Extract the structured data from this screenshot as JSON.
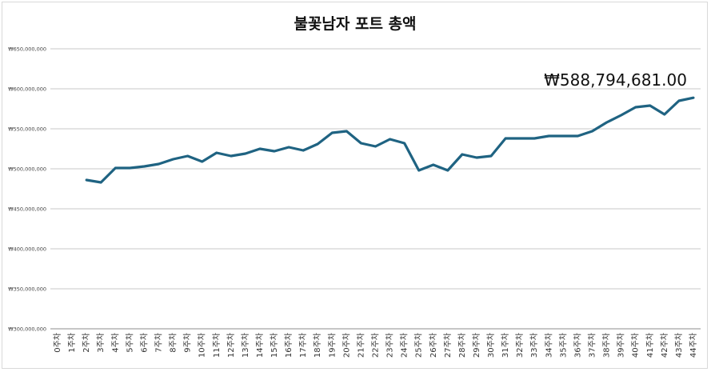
{
  "chart_data": {
    "type": "line",
    "title": "불꽃남자 포트 총액",
    "xlabel": "",
    "ylabel": "",
    "ylim": [
      300000000,
      650000000
    ],
    "yticks": [
      300000000,
      350000000,
      400000000,
      450000000,
      500000000,
      550000000,
      600000000,
      650000000
    ],
    "ytick_labels": [
      "₩300,000,000",
      "₩350,000,000",
      "₩400,000,000",
      "₩450,000,000",
      "₩500,000,000",
      "₩550,000,000",
      "₩600,000,000",
      "₩650,000,000"
    ],
    "grid": true,
    "legend": "none",
    "categories": [
      "0주차",
      "1주차",
      "2주차",
      "3주차",
      "4주차",
      "5주차",
      "6주차",
      "7주차",
      "8주차",
      "9주차",
      "10주차",
      "11주차",
      "12주차",
      "13주차",
      "14주차",
      "15주차",
      "16주차",
      "17주차",
      "18주차",
      "19주차",
      "20주차",
      "21주차",
      "22주차",
      "23주차",
      "24주차",
      "25주차",
      "26주차",
      "27주차",
      "28주차",
      "29주차",
      "30주차",
      "31주차",
      "32주차",
      "33주차",
      "34주차",
      "35주차",
      "36주차",
      "37주차",
      "38주차",
      "39주차",
      "40주차",
      "41주차",
      "42주차",
      "43주차",
      "44주차"
    ],
    "series": [
      {
        "color": "#1f6382",
        "values": [
          null,
          null,
          486000000,
          483000000,
          501000000,
          501000000,
          503000000,
          506000000,
          512000000,
          516000000,
          509000000,
          520000000,
          516000000,
          519000000,
          525000000,
          522000000,
          527000000,
          523000000,
          531000000,
          545000000,
          547000000,
          532000000,
          528000000,
          537000000,
          532000000,
          498000000,
          505000000,
          498000000,
          518000000,
          514000000,
          516000000,
          538000000,
          538000000,
          538000000,
          541000000,
          541000000,
          541000000,
          547000000,
          558000000,
          567000000,
          577000000,
          579000000,
          568000000,
          585000000,
          588794681
        ]
      }
    ],
    "annotations": [
      {
        "label": "₩588,794,681.00",
        "point_index": 44
      }
    ]
  }
}
